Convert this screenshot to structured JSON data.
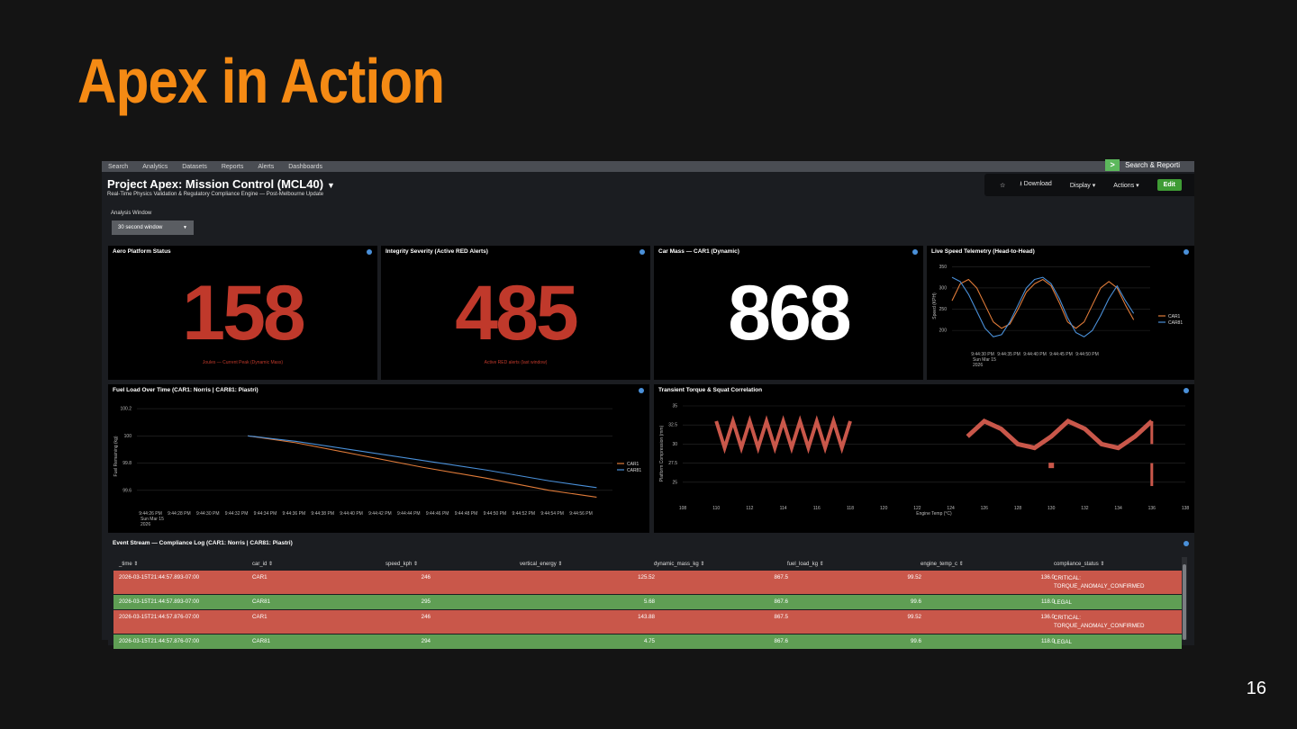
{
  "slide": {
    "title": "Apex in Action",
    "page_number": "16"
  },
  "nav": {
    "items": [
      "Search",
      "Analytics",
      "Datasets",
      "Reports",
      "Alerts",
      "Dashboards"
    ],
    "app_name": "Search & Reporti"
  },
  "dashboard": {
    "title": "Project Apex: Mission Control (MCL40)",
    "subtitle": "Real-Time Physics Validation & Regulatory Compliance Engine — Post-Melbourne Update",
    "toolbar": {
      "star": "☆",
      "download": "Download",
      "display": "Display ▾",
      "actions": "Actions ▾",
      "edit": "Edit"
    },
    "analysis_window": {
      "label": "Analysis Window",
      "value": "30 second window"
    }
  },
  "colors": {
    "accent": "#f58a14",
    "critical": "#c9574a",
    "legal": "#5f9e54",
    "car1": "#e07b39",
    "car81": "#4a90d9",
    "single_value_red": "#c0392b"
  },
  "panels": {
    "aero": {
      "title": "Aero Platform Status",
      "value": "158",
      "caption": "Joules — Current Peak (Dynamic Mass)"
    },
    "integrity": {
      "title": "Integrity Severity (Active RED Alerts)",
      "value": "485",
      "caption": "Active RED alerts (last window)"
    },
    "mass": {
      "title": "Car Mass — CAR1 (Dynamic)",
      "value": "868"
    },
    "speed": {
      "title": "Live Speed Telemetry (Head-to-Head)"
    },
    "fuel": {
      "title": "Fuel Load Over Time (CAR1: Norris | CAR81: Piastri)"
    },
    "torque": {
      "title": "Transient Torque & Squat Correlation"
    },
    "events": {
      "title": "Event Stream — Compliance Log (CAR1: Norris | CAR81: Piastri)"
    }
  },
  "chart_data": [
    {
      "type": "line",
      "title": "Live Speed Telemetry (Head-to-Head)",
      "ylabel": "Speed (KPH)",
      "ylim": [
        160,
        355
      ],
      "yticks": [
        "350",
        "300",
        "250",
        "200"
      ],
      "xticks": [
        "9:44:30 PM\nSun Mar 15\n2026",
        "9:44:35 PM",
        "9:44:40 PM",
        "9:44:45 PM",
        "9:44:50 PM"
      ],
      "xlim": [
        0,
        24
      ],
      "legend": "right",
      "series": [
        {
          "name": "CAR1",
          "x": [
            0,
            1,
            2,
            3,
            4,
            5,
            6,
            7,
            8,
            9,
            10,
            11,
            12,
            13,
            14,
            15,
            16,
            17,
            18,
            19,
            20,
            21,
            22
          ],
          "values": [
            270,
            310,
            320,
            300,
            260,
            220,
            205,
            215,
            250,
            290,
            310,
            320,
            305,
            265,
            220,
            205,
            220,
            260,
            300,
            315,
            300,
            260,
            225
          ]
        },
        {
          "name": "CAR81",
          "x": [
            0,
            1,
            2,
            3,
            4,
            5,
            6,
            7,
            8,
            9,
            10,
            11,
            12,
            13,
            14,
            15,
            16,
            17,
            18,
            19,
            20,
            21,
            22
          ],
          "values": [
            325,
            315,
            285,
            245,
            205,
            185,
            190,
            220,
            260,
            300,
            320,
            325,
            310,
            275,
            230,
            195,
            185,
            200,
            235,
            275,
            305,
            270,
            240
          ]
        }
      ]
    },
    {
      "type": "line",
      "title": "Fuel Load Over Time (CAR1: Norris | CAR81: Piastri)",
      "ylabel": "Fuel Remaining (kg)",
      "ylim": [
        99.48,
        100.22
      ],
      "yticks": [
        "100.2",
        "100",
        "99.8",
        "99.6"
      ],
      "xticks": [
        "9:44:26 PM\nSun Mar 15\n2026",
        "9:44:28 PM",
        "9:44:30 PM",
        "9:44:32 PM",
        "9:44:34 PM",
        "9:44:36 PM",
        "9:44:38 PM",
        "9:44:40 PM",
        "9:44:42 PM",
        "9:44:44 PM",
        "9:44:46 PM",
        "9:44:48 PM",
        "9:44:50 PM",
        "9:44:52 PM",
        "9:44:54 PM",
        "9:44:56 PM"
      ],
      "xlim": [
        0,
        30
      ],
      "legend": "right",
      "series": [
        {
          "name": "CAR1",
          "x": [
            7,
            10,
            14,
            18,
            22,
            26,
            29
          ],
          "values": [
            100.0,
            99.95,
            99.86,
            99.77,
            99.69,
            99.6,
            99.55
          ]
        },
        {
          "name": "CAR81",
          "x": [
            7,
            10,
            14,
            18,
            22,
            26,
            29
          ],
          "values": [
            100.0,
            99.96,
            99.89,
            99.82,
            99.75,
            99.67,
            99.62
          ]
        }
      ]
    },
    {
      "type": "scatter",
      "title": "Transient Torque & Squat Correlation",
      "xlabel": "Engine Temp (°C)",
      "ylabel": "Platform Compression (mm)",
      "xlim": [
        108,
        138
      ],
      "ylim": [
        22.5,
        35
      ],
      "xticks": [
        "108",
        "110",
        "112",
        "114",
        "116",
        "118",
        "120",
        "122",
        "124",
        "126",
        "128",
        "130",
        "132",
        "134",
        "136",
        "138"
      ],
      "yticks": [
        "35",
        "32.5",
        "30",
        "27.5",
        "25"
      ],
      "series": [
        {
          "name": "zigzag",
          "x": [
            110,
            110.5,
            111,
            111.5,
            112,
            112.5,
            113,
            113.5,
            114,
            114.5,
            115,
            115.5,
            116,
            116.5,
            117,
            117.5,
            118
          ],
          "values": [
            33,
            29.5,
            33,
            29.5,
            33,
            29.5,
            33,
            29.5,
            33,
            29.5,
            33,
            29.5,
            33,
            29.5,
            33,
            29.5,
            33
          ]
        },
        {
          "name": "wave",
          "x": [
            125,
            126,
            127,
            128,
            129,
            130,
            131,
            132,
            133,
            134,
            135,
            136
          ],
          "values": [
            31,
            33,
            32,
            30,
            29.5,
            31,
            33,
            32,
            30,
            29.5,
            31,
            33
          ]
        },
        {
          "name": "vertical",
          "x": [
            136,
            136
          ],
          "values": [
            33,
            30
          ]
        },
        {
          "name": "vertical2",
          "x": [
            136,
            136
          ],
          "values": [
            27.5,
            24.5
          ]
        },
        {
          "name": "dot",
          "x": [
            130
          ],
          "values": [
            27.2
          ]
        }
      ]
    }
  ],
  "events": {
    "columns": [
      "_time ⇕",
      "car_id ⇕",
      "speed_kph ⇕",
      "vertical_energy ⇕",
      "dynamic_mass_kg ⇕",
      "fuel_load_kg ⇕",
      "engine_temp_c ⇕",
      "compliance_status ⇕"
    ],
    "rows": [
      {
        "status": "critical",
        "cells": [
          "2026-03-15T21:44:57.893-07:00",
          "CAR1",
          "246",
          "125.52",
          "867.5",
          "99.52",
          "136.0"
        ],
        "compliance": [
          "CRITICAL:",
          "TORQUE_ANOMALY_CONFIRMED"
        ]
      },
      {
        "status": "legal",
        "cells": [
          "2026-03-15T21:44:57.893-07:00",
          "CAR81",
          "295",
          "5.68",
          "867.6",
          "99.6",
          "118.0"
        ],
        "compliance": [
          "LEGAL",
          ""
        ]
      },
      {
        "status": "critical",
        "cells": [
          "2026-03-15T21:44:57.876-07:00",
          "CAR1",
          "246",
          "143.88",
          "867.5",
          "99.52",
          "136.0"
        ],
        "compliance": [
          "CRITICAL:",
          "TORQUE_ANOMALY_CONFIRMED"
        ]
      },
      {
        "status": "legal",
        "cells": [
          "2026-03-15T21:44:57.876-07:00",
          "CAR81",
          "294",
          "4.75",
          "867.6",
          "99.6",
          "118.0"
        ],
        "compliance": [
          "LEGAL",
          ""
        ]
      }
    ]
  }
}
